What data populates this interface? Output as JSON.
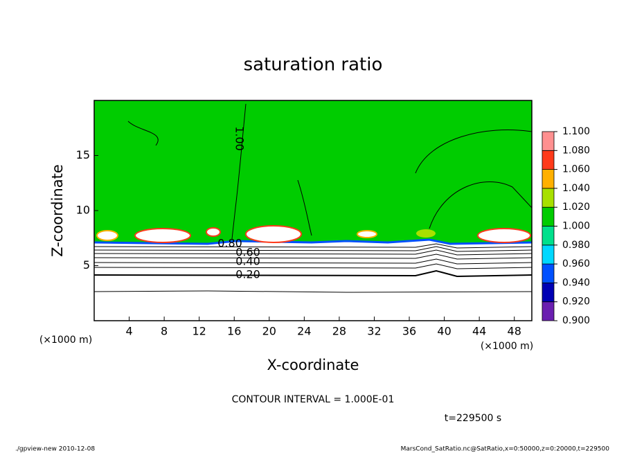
{
  "chart_data": {
    "type": "contour",
    "title": "saturation ratio",
    "x_label": "X-coordinate",
    "y_label": "Z-coordinate",
    "axis_unit": "(×1000 m)",
    "xlim": [
      0,
      50
    ],
    "xticks": [
      4,
      8,
      12,
      16,
      20,
      24,
      28,
      32,
      36,
      40,
      44,
      48
    ],
    "ylim": [
      0,
      20
    ],
    "yticks": [
      5,
      10,
      15
    ],
    "colorbar": {
      "levels": [
        {
          "value": 0.9,
          "label": "0.900"
        },
        {
          "value": 0.92,
          "label": "0.920"
        },
        {
          "value": 0.94,
          "label": "0.940"
        },
        {
          "value": 0.96,
          "label": "0.960"
        },
        {
          "value": 0.98,
          "label": "0.980"
        },
        {
          "value": 1.0,
          "label": "1.000"
        },
        {
          "value": 1.02,
          "label": "1.020"
        },
        {
          "value": 1.04,
          "label": "1.040"
        },
        {
          "value": 1.06,
          "label": "1.060"
        },
        {
          "value": 1.08,
          "label": "1.080"
        },
        {
          "value": 1.1,
          "label": "1.100"
        }
      ],
      "colors": [
        "#6a1fb0",
        "#0000b4",
        "#0050ff",
        "#00d8ff",
        "#00e08c",
        "#00cc00",
        "#a8e000",
        "#ffb000",
        "#ff3a1a",
        "#ff9090"
      ]
    },
    "contour_levels": [
      1.0,
      0.8,
      0.6,
      0.4,
      0.2
    ],
    "contour_level_labels": [
      "1.00",
      "0.80",
      "0.60",
      "0.40",
      "0.20"
    ],
    "contour_interval_note": "CONTOUR INTERVAL = 1.000E-01",
    "time_note": "t=229500 s",
    "footer_left": "./gpview-new  2010-12-08",
    "footer_right": "MarsCond_SatRatio.nc@SatRatio,x=0:50000,z=0:20000,t=229500"
  }
}
